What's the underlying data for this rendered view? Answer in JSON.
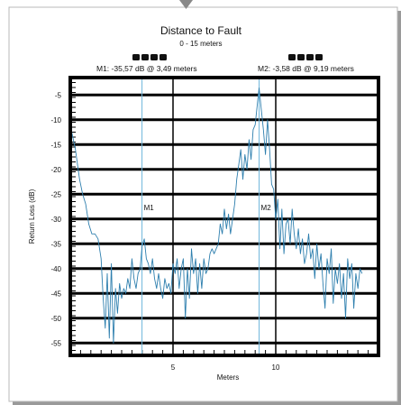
{
  "chart_data": {
    "type": "line",
    "title": "Distance to Fault",
    "subtitle": "0 - 15 meters",
    "xlabel": "Meters",
    "ylabel": "Return Loss (dB)",
    "xlim": [
      0,
      15
    ],
    "ylim": [
      -57.5,
      -1.5
    ],
    "grid": true,
    "x_ticks": [
      5,
      10
    ],
    "y_ticks": [
      -5,
      -10,
      -15,
      -20,
      -25,
      -30,
      -35,
      -40,
      -45,
      -50,
      -55
    ],
    "markers": [
      {
        "id": "M1",
        "label": "M1",
        "x": 3.49,
        "y": -35.57,
        "readout": "M1: -35,57 dB @ 3,49 meters"
      },
      {
        "id": "M2",
        "label": "M2",
        "x": 9.19,
        "y": -3.58,
        "readout": "M2: -3,58 dB @ 9,19 meters"
      }
    ],
    "series": [
      {
        "x": [
          0.05,
          0.25,
          0.45,
          0.6,
          0.75,
          0.9,
          1.05,
          1.2,
          1.35,
          1.5,
          1.6,
          1.7,
          1.8,
          1.9,
          2.0,
          2.1,
          2.2,
          2.3,
          2.4,
          2.5,
          2.6,
          2.7,
          2.8,
          2.9,
          3.0,
          3.1,
          3.2,
          3.3,
          3.4,
          3.49,
          3.6,
          3.7,
          3.8,
          3.9,
          4.0,
          4.1,
          4.2,
          4.3,
          4.4,
          4.5,
          4.6,
          4.7,
          4.8,
          4.9,
          5.0,
          5.1,
          5.2,
          5.3,
          5.4,
          5.5,
          5.6,
          5.7,
          5.8,
          5.9,
          6.0,
          6.1,
          6.2,
          6.3,
          6.4,
          6.5,
          6.6,
          6.7,
          6.8,
          6.9,
          7.0,
          7.1,
          7.2,
          7.3,
          7.4,
          7.5,
          7.6,
          7.7,
          7.8,
          7.9,
          8.0,
          8.1,
          8.2,
          8.3,
          8.4,
          8.5,
          8.6,
          8.7,
          8.8,
          8.9,
          9.0,
          9.1,
          9.19,
          9.3,
          9.4,
          9.5,
          9.6,
          9.7,
          9.8,
          9.9,
          10.0,
          10.1,
          10.2,
          10.3,
          10.4,
          10.5,
          10.6,
          10.7,
          10.8,
          10.9,
          11.0,
          11.1,
          11.2,
          11.3,
          11.4,
          11.5,
          11.6,
          11.7,
          11.8,
          11.9,
          12.0,
          12.1,
          12.2,
          12.3,
          12.4,
          12.5,
          12.6,
          12.7,
          12.8,
          12.9,
          13.0,
          13.1,
          13.2,
          13.3,
          13.4,
          13.5,
          13.6,
          13.7,
          13.8,
          13.9,
          14.0,
          14.1,
          14.2
        ],
        "y": [
          -12,
          -16,
          -22,
          -25,
          -27,
          -31,
          -33,
          -33,
          -34,
          -38,
          -46,
          -52,
          -41,
          -54,
          -39,
          -55,
          -44,
          -49,
          -43,
          -46,
          -44,
          -45,
          -42,
          -44,
          -38,
          -42,
          -44,
          -41,
          -40,
          -35.57,
          -34,
          -38,
          -39,
          -41,
          -38,
          -42,
          -44,
          -41,
          -44,
          -46,
          -42,
          -44,
          -43,
          -45,
          -39,
          -41,
          -38,
          -44,
          -40,
          -38,
          -50,
          -40,
          -46,
          -36,
          -41,
          -38,
          -45,
          -39,
          -44,
          -38,
          -41,
          -40,
          -37,
          -36,
          -37,
          -36,
          -35,
          -31,
          -33,
          -28,
          -32,
          -29,
          -33,
          -30,
          -27,
          -22,
          -19,
          -16,
          -22,
          -17,
          -20,
          -14,
          -18,
          -12,
          -11,
          -7,
          -3.58,
          -8,
          -12,
          -17,
          -10,
          -16,
          -23,
          -24,
          -30,
          -26,
          -36,
          -28,
          -37,
          -31,
          -30,
          -35,
          -28,
          -33,
          -36,
          -32,
          -37,
          -34,
          -39,
          -37,
          -33,
          -38,
          -36,
          -42,
          -35,
          -40,
          -37,
          -43,
          -48,
          -38,
          -41,
          -36,
          -47,
          -40,
          -43,
          -39,
          -46,
          -41,
          -50,
          -38,
          -42,
          -39,
          -48,
          -41,
          -44,
          -40,
          -41
        ]
      }
    ]
  }
}
